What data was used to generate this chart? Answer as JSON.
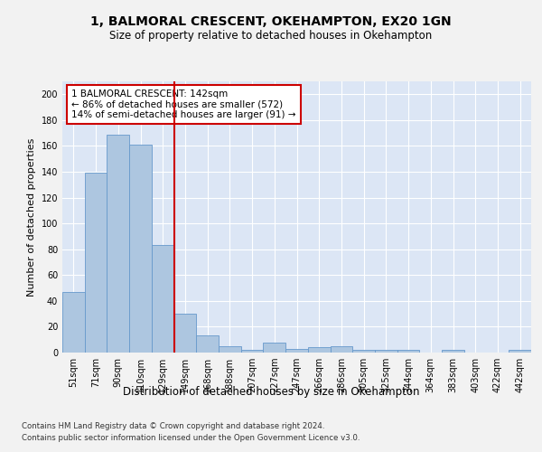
{
  "title1": "1, BALMORAL CRESCENT, OKEHAMPTON, EX20 1GN",
  "title2": "Size of property relative to detached houses in Okehampton",
  "xlabel": "Distribution of detached houses by size in Okehampton",
  "ylabel": "Number of detached properties",
  "categories": [
    "51sqm",
    "71sqm",
    "90sqm",
    "110sqm",
    "129sqm",
    "149sqm",
    "168sqm",
    "188sqm",
    "207sqm",
    "227sqm",
    "247sqm",
    "266sqm",
    "286sqm",
    "305sqm",
    "325sqm",
    "344sqm",
    "364sqm",
    "383sqm",
    "403sqm",
    "422sqm",
    "442sqm"
  ],
  "values": [
    47,
    139,
    169,
    161,
    83,
    30,
    13,
    5,
    2,
    8,
    3,
    4,
    5,
    2,
    2,
    2,
    0,
    2,
    0,
    0,
    2
  ],
  "bar_color": "#adc6e0",
  "bar_edge_color": "#6699cc",
  "vline_color": "#cc0000",
  "annotation_text": "1 BALMORAL CRESCENT: 142sqm\n← 86% of detached houses are smaller (572)\n14% of semi-detached houses are larger (91) →",
  "annotation_box_color": "#ffffff",
  "annotation_box_edge": "#cc0000",
  "ylim": [
    0,
    210
  ],
  "yticks": [
    0,
    20,
    40,
    60,
    80,
    100,
    120,
    140,
    160,
    180,
    200
  ],
  "footer1": "Contains HM Land Registry data © Crown copyright and database right 2024.",
  "footer2": "Contains public sector information licensed under the Open Government Licence v3.0.",
  "fig_bg_color": "#f2f2f2",
  "plot_bg_color": "#dce6f5",
  "grid_color": "#ffffff",
  "title1_fontsize": 10,
  "title2_fontsize": 8.5,
  "tick_fontsize": 7,
  "xlabel_fontsize": 8.5,
  "ylabel_fontsize": 8,
  "annotation_fontsize": 7.5,
  "footer_fontsize": 6.2
}
